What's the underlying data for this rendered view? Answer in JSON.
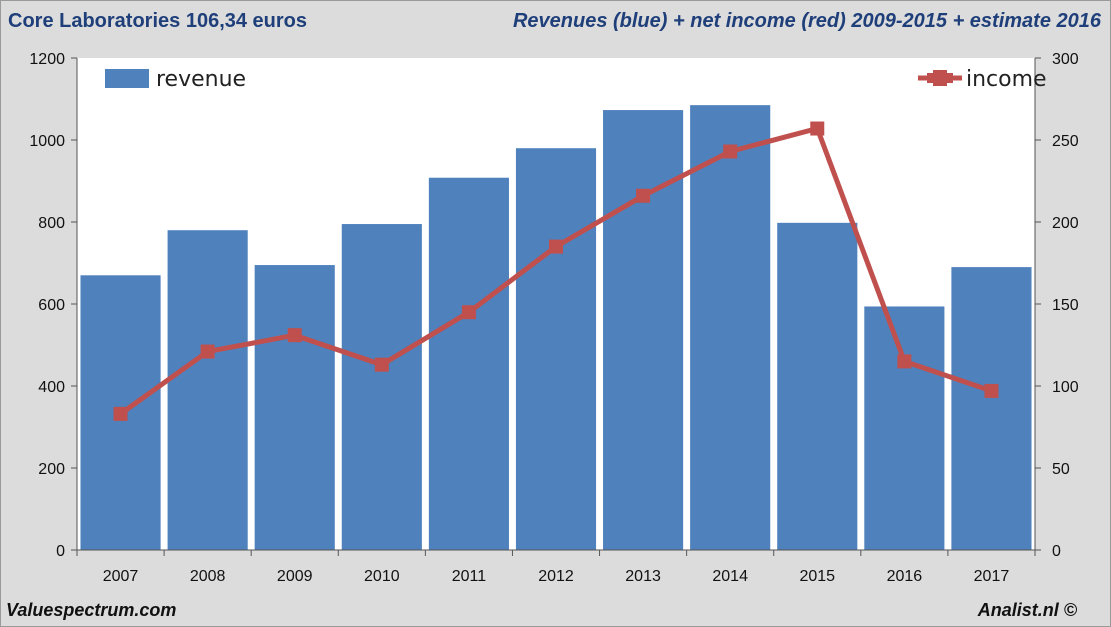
{
  "header": {
    "left": "Core Laboratories 106,34 euros",
    "right": "Revenues (blue) + net income (red) 2009-2015 + estimate 2016"
  },
  "footer": {
    "left": "Valuespectrum.com",
    "right": "Analist.nl ©"
  },
  "colors": {
    "bar": "#4f81bd",
    "line": "#c0504d",
    "plot_bg": "#ffffff",
    "page_bg": "#dcdcdc"
  },
  "chart_data": {
    "type": "bar",
    "categories": [
      "2007",
      "2008",
      "2009",
      "2010",
      "2011",
      "2012",
      "2013",
      "2014",
      "2015",
      "2016",
      "2017"
    ],
    "series": [
      {
        "name": "revenue",
        "type": "bar",
        "axis": "left",
        "values": [
          670,
          780,
          695,
          795,
          908,
          980,
          1073,
          1085,
          798,
          594,
          690
        ]
      },
      {
        "name": "income",
        "type": "line",
        "axis": "right",
        "values": [
          83,
          121,
          131,
          113,
          145,
          185,
          216,
          243,
          257,
          115,
          97
        ]
      }
    ],
    "y_left": {
      "min": 0,
      "max": 1200,
      "ticks": [
        "0",
        "200",
        "400",
        "600",
        "800",
        "1000",
        "1200"
      ]
    },
    "y_right": {
      "min": 0,
      "max": 300,
      "ticks": [
        "0",
        "50",
        "100",
        "150",
        "200",
        "250",
        "300"
      ]
    },
    "grid": false,
    "legend": [
      {
        "label": "revenue",
        "placement": "top-left"
      },
      {
        "label": "income",
        "placement": "top-right"
      }
    ]
  }
}
